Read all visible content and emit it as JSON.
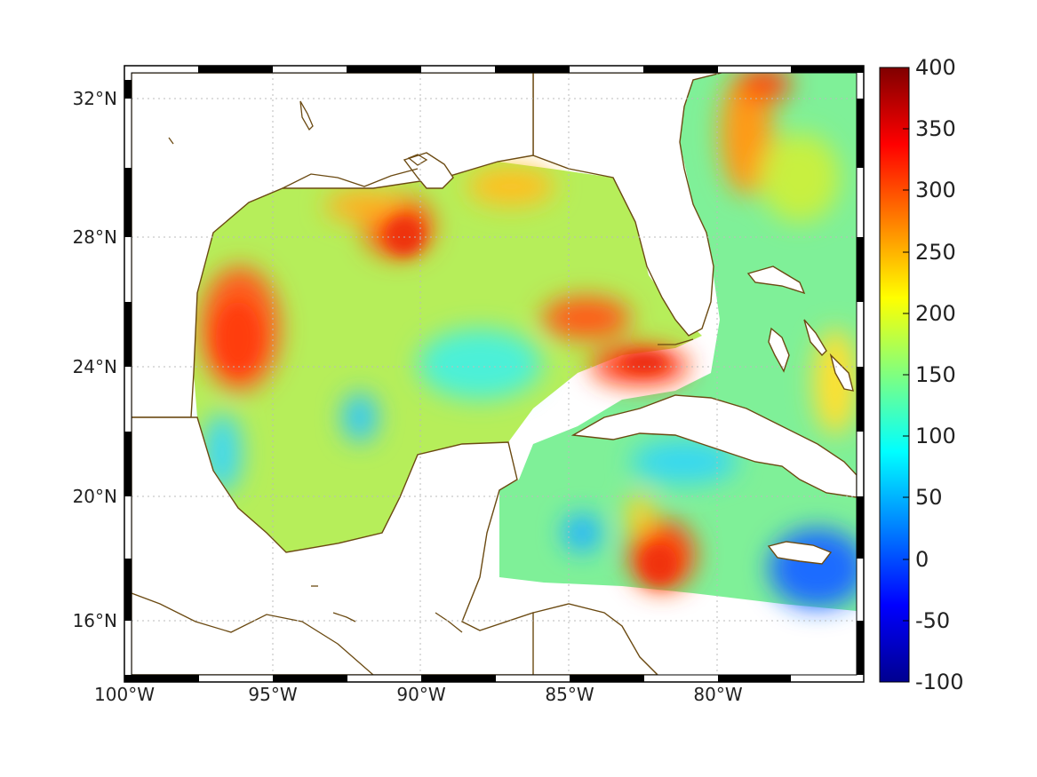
{
  "map": {
    "lon_ticks": [
      "100°W",
      "95°W",
      "90°W",
      "85°W",
      "80°W"
    ],
    "lat_ticks": [
      "32°N",
      "28°N",
      "24°N",
      "20°N",
      "16°N"
    ],
    "lon_range": [
      -100,
      -75
    ],
    "lat_range": [
      14.2,
      33.0
    ],
    "coastline_color": "#6b4a12",
    "grid": "dotted"
  },
  "colorbar": {
    "colormap": "jet",
    "range": [
      -100,
      400
    ],
    "tick_labels": [
      "400",
      "350",
      "300",
      "250",
      "200",
      "150",
      "100",
      "50",
      "0",
      "-50",
      "-100"
    ]
  }
}
